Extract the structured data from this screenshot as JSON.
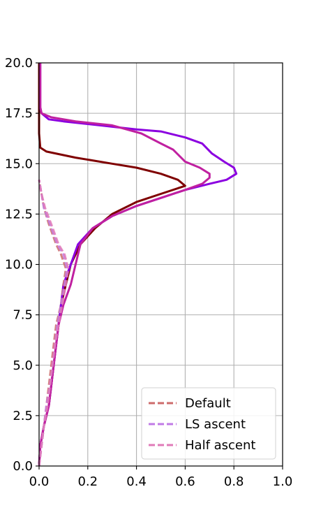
{
  "chart_data": {
    "type": "line",
    "title": "",
    "xlabel": "",
    "ylabel": "",
    "xlim": [
      0.0,
      1.0
    ],
    "ylim": [
      0.0,
      20.0
    ],
    "x_ticks": [
      "0.0",
      "0.2",
      "0.4",
      "0.6",
      "0.8",
      "1.0"
    ],
    "y_ticks": [
      "0.0",
      "2.5",
      "5.0",
      "7.5",
      "10.0",
      "12.5",
      "15.0",
      "17.5",
      "20.0"
    ],
    "grid": true,
    "legend_position": "lower-right",
    "legend": [
      {
        "label": "Default",
        "color": "#cd6b6b",
        "style": "dashed"
      },
      {
        "label": "LS ascent",
        "color": "#c07ae6",
        "style": "dashed"
      },
      {
        "label": "Half ascent",
        "color": "#e07ab8",
        "style": "dashed"
      }
    ],
    "series": [
      {
        "color": "#7f0000",
        "style": "solid",
        "points": [
          [
            0.0,
            0.0
          ],
          [
            0.005,
            1.0
          ],
          [
            0.02,
            2.0
          ],
          [
            0.04,
            3.0
          ],
          [
            0.05,
            4.0
          ],
          [
            0.06,
            5.0
          ],
          [
            0.07,
            6.0
          ],
          [
            0.08,
            7.0
          ],
          [
            0.09,
            8.0
          ],
          [
            0.11,
            9.0
          ],
          [
            0.13,
            10.0
          ],
          [
            0.17,
            11.0
          ],
          [
            0.23,
            11.8
          ],
          [
            0.3,
            12.5
          ],
          [
            0.4,
            13.1
          ],
          [
            0.5,
            13.5
          ],
          [
            0.6,
            13.9
          ],
          [
            0.57,
            14.2
          ],
          [
            0.5,
            14.5
          ],
          [
            0.4,
            14.8
          ],
          [
            0.3,
            15.0
          ],
          [
            0.15,
            15.3
          ],
          [
            0.03,
            15.6
          ],
          [
            0.005,
            15.8
          ],
          [
            0.0,
            16.5
          ],
          [
            0.0,
            20.0
          ]
        ]
      },
      {
        "color": "#8b00e0",
        "style": "solid",
        "points": [
          [
            0.0,
            0.0
          ],
          [
            0.005,
            1.0
          ],
          [
            0.02,
            2.0
          ],
          [
            0.04,
            3.0
          ],
          [
            0.05,
            4.0
          ],
          [
            0.06,
            5.0
          ],
          [
            0.07,
            6.0
          ],
          [
            0.08,
            7.0
          ],
          [
            0.09,
            8.0
          ],
          [
            0.1,
            9.0
          ],
          [
            0.13,
            10.0
          ],
          [
            0.16,
            11.0
          ],
          [
            0.22,
            11.8
          ],
          [
            0.3,
            12.4
          ],
          [
            0.4,
            12.9
          ],
          [
            0.5,
            13.3
          ],
          [
            0.6,
            13.7
          ],
          [
            0.7,
            14.0
          ],
          [
            0.77,
            14.2
          ],
          [
            0.81,
            14.5
          ],
          [
            0.8,
            14.8
          ],
          [
            0.76,
            15.1
          ],
          [
            0.71,
            15.5
          ],
          [
            0.67,
            16.0
          ],
          [
            0.6,
            16.3
          ],
          [
            0.5,
            16.6
          ],
          [
            0.4,
            16.7
          ],
          [
            0.25,
            16.9
          ],
          [
            0.1,
            17.1
          ],
          [
            0.04,
            17.2
          ],
          [
            0.01,
            17.5
          ],
          [
            0.005,
            17.8
          ],
          [
            0.005,
            20.0
          ]
        ]
      },
      {
        "color": "#c020a0",
        "style": "solid",
        "points": [
          [
            0.0,
            0.0
          ],
          [
            0.005,
            1.0
          ],
          [
            0.02,
            2.0
          ],
          [
            0.04,
            3.0
          ],
          [
            0.05,
            4.0
          ],
          [
            0.06,
            5.0
          ],
          [
            0.07,
            6.0
          ],
          [
            0.08,
            7.0
          ],
          [
            0.1,
            8.0
          ],
          [
            0.13,
            9.0
          ],
          [
            0.15,
            10.0
          ],
          [
            0.17,
            11.0
          ],
          [
            0.22,
            11.8
          ],
          [
            0.3,
            12.4
          ],
          [
            0.4,
            12.9
          ],
          [
            0.5,
            13.3
          ],
          [
            0.6,
            13.7
          ],
          [
            0.67,
            14.0
          ],
          [
            0.7,
            14.3
          ],
          [
            0.7,
            14.5
          ],
          [
            0.66,
            14.8
          ],
          [
            0.6,
            15.1
          ],
          [
            0.55,
            15.7
          ],
          [
            0.5,
            16.0
          ],
          [
            0.42,
            16.5
          ],
          [
            0.3,
            16.9
          ],
          [
            0.15,
            17.1
          ],
          [
            0.05,
            17.3
          ],
          [
            0.01,
            17.5
          ],
          [
            0.005,
            17.8
          ],
          [
            0.005,
            20.0
          ]
        ]
      },
      {
        "color": "#cd6b6b",
        "style": "dashed",
        "points": [
          [
            0.0,
            0.0
          ],
          [
            0.01,
            1.0
          ],
          [
            0.02,
            2.0
          ],
          [
            0.03,
            3.0
          ],
          [
            0.04,
            4.0
          ],
          [
            0.05,
            5.0
          ],
          [
            0.06,
            6.0
          ],
          [
            0.07,
            7.0
          ],
          [
            0.09,
            8.0
          ],
          [
            0.1,
            9.0
          ],
          [
            0.11,
            9.8
          ],
          [
            0.09,
            10.5
          ],
          [
            0.07,
            11.0
          ],
          [
            0.04,
            12.0
          ],
          [
            0.02,
            12.8
          ],
          [
            0.01,
            13.5
          ],
          [
            0.0,
            14.2
          ]
        ]
      },
      {
        "color": "#c07ae6",
        "style": "dashed",
        "points": [
          [
            0.0,
            0.0
          ],
          [
            0.01,
            1.0
          ],
          [
            0.02,
            2.0
          ],
          [
            0.03,
            3.0
          ],
          [
            0.045,
            4.0
          ],
          [
            0.055,
            5.0
          ],
          [
            0.065,
            6.0
          ],
          [
            0.075,
            7.0
          ],
          [
            0.09,
            8.0
          ],
          [
            0.105,
            9.0
          ],
          [
            0.115,
            9.8
          ],
          [
            0.1,
            10.5
          ],
          [
            0.075,
            11.0
          ],
          [
            0.045,
            12.0
          ],
          [
            0.02,
            12.8
          ],
          [
            0.01,
            13.5
          ],
          [
            0.0,
            14.2
          ]
        ]
      },
      {
        "color": "#e07ab8",
        "style": "dashed",
        "points": [
          [
            0.0,
            0.0
          ],
          [
            0.01,
            1.0
          ],
          [
            0.02,
            2.0
          ],
          [
            0.035,
            3.0
          ],
          [
            0.045,
            4.0
          ],
          [
            0.055,
            5.0
          ],
          [
            0.065,
            6.0
          ],
          [
            0.08,
            7.0
          ],
          [
            0.095,
            8.0
          ],
          [
            0.11,
            9.0
          ],
          [
            0.12,
            9.8
          ],
          [
            0.105,
            10.5
          ],
          [
            0.08,
            11.0
          ],
          [
            0.05,
            12.0
          ],
          [
            0.025,
            12.8
          ],
          [
            0.01,
            13.5
          ],
          [
            0.0,
            14.2
          ]
        ]
      }
    ]
  }
}
